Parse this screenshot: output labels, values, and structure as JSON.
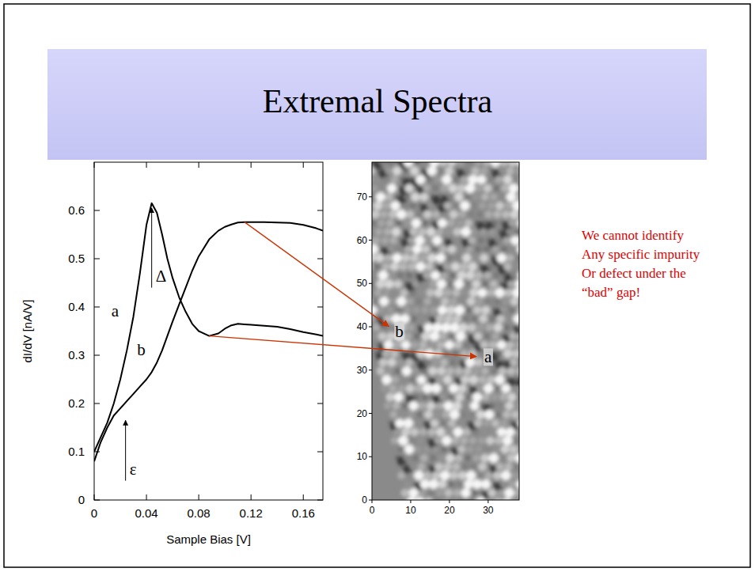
{
  "slide": {
    "title": "Extremal Spectra",
    "note": [
      "We cannot identify",
      "Any specific impurity",
      "Or defect under the",
      "“bad” gap!"
    ],
    "note_color": "#e00000"
  },
  "chart_data": [
    {
      "type": "line",
      "xlabel": "Sample Bias [V]",
      "ylabel": "dI/dV [nA/V]",
      "xlim": [
        0,
        0.175
      ],
      "ylim": [
        0,
        0.7
      ],
      "xticks": [
        0,
        0.04,
        0.08,
        0.12,
        0.16
      ],
      "yticks": [
        0,
        0.1,
        0.2,
        0.3,
        0.4,
        0.5,
        0.6
      ],
      "x": [
        0,
        0.005,
        0.01,
        0.015,
        0.02,
        0.025,
        0.03,
        0.035,
        0.04,
        0.044,
        0.048,
        0.052,
        0.056,
        0.06,
        0.065,
        0.07,
        0.075,
        0.08,
        0.088,
        0.095,
        0.1,
        0.105,
        0.11,
        0.115,
        0.12,
        0.13,
        0.14,
        0.15,
        0.16,
        0.17,
        0.175
      ],
      "series": [
        {
          "name": "a",
          "color": "#000000",
          "label_x": 0.016,
          "label_y": 0.38,
          "values": [
            0.1,
            0.13,
            0.16,
            0.2,
            0.25,
            0.31,
            0.38,
            0.47,
            0.57,
            0.615,
            0.595,
            0.55,
            0.5,
            0.46,
            0.42,
            0.39,
            0.365,
            0.35,
            0.34,
            0.345,
            0.355,
            0.362,
            0.365,
            0.364,
            0.363,
            0.361,
            0.359,
            0.354,
            0.348,
            0.343,
            0.34
          ]
        },
        {
          "name": "b",
          "color": "#000000",
          "label_x": 0.036,
          "label_y": 0.3,
          "values": [
            0.08,
            0.12,
            0.15,
            0.175,
            0.19,
            0.205,
            0.22,
            0.235,
            0.25,
            0.265,
            0.285,
            0.31,
            0.34,
            0.37,
            0.405,
            0.44,
            0.475,
            0.505,
            0.54,
            0.558,
            0.566,
            0.571,
            0.575,
            0.576,
            0.576,
            0.576,
            0.575,
            0.574,
            0.57,
            0.563,
            0.558
          ]
        }
      ],
      "annotations": [
        {
          "text": "Δ",
          "x": 0.044,
          "y_from": 0.44,
          "y_to": 0.605
        },
        {
          "text": "ε",
          "x": 0.024,
          "y_from": 0.04,
          "y_to": 0.165
        }
      ],
      "grid": false
    },
    {
      "type": "image",
      "xlim": [
        0,
        38
      ],
      "ylim": [
        0,
        78
      ],
      "xticks": [
        0,
        10,
        20,
        30
      ],
      "yticks": [
        0,
        10,
        20,
        30,
        40,
        50,
        60,
        70
      ],
      "annotations": [
        {
          "text": "b",
          "x": 6,
          "y": 39,
          "from_x": 0.115,
          "from_y": 0.576,
          "color": "#cc3300"
        },
        {
          "text": "a",
          "x": 29,
          "y": 33,
          "from_x": 0.088,
          "from_y": 0.34,
          "color": "#cc3300"
        }
      ]
    }
  ]
}
